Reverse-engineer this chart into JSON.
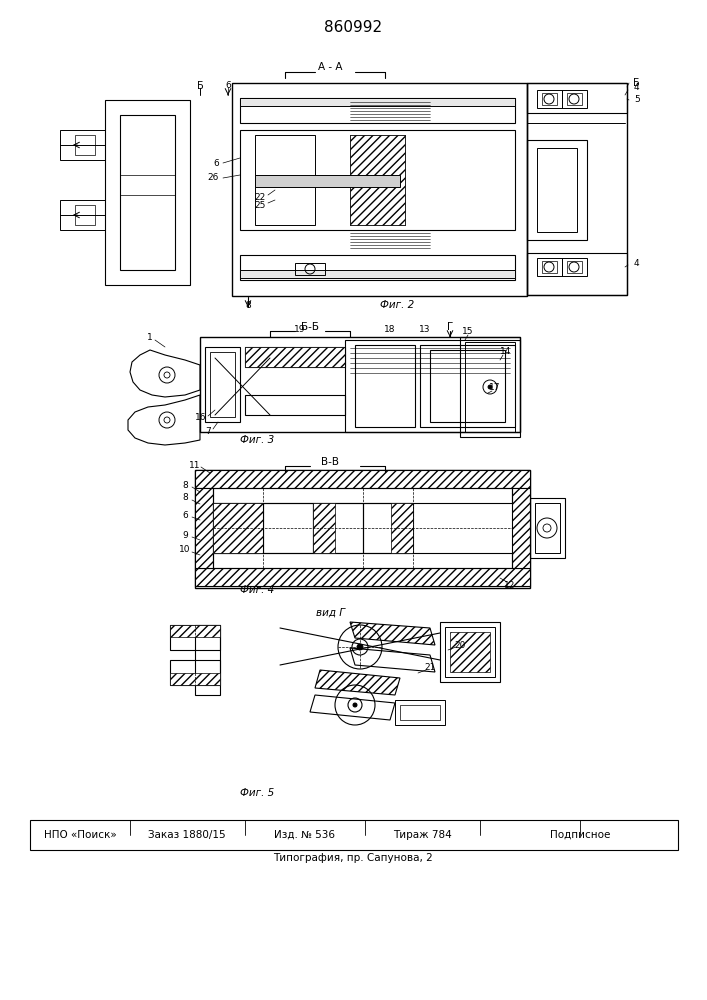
{
  "title": "860992",
  "background_color": "#ffffff",
  "footer_line1": "НПО «Поиск»",
  "footer_col2": "Заказ 1880/15",
  "footer_col3": "Изд. № 536",
  "footer_col4": "Тираж 784",
  "footer_col5": "Подписное",
  "footer_line2": "Типография, пр. Сапунова, 2"
}
